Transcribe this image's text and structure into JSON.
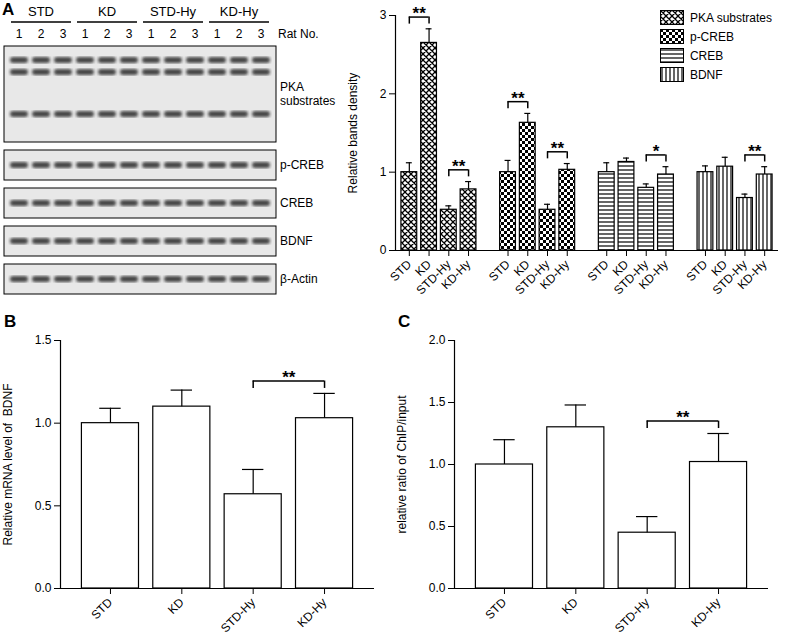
{
  "panel_labels": [
    "A",
    "B",
    "C"
  ],
  "blot": {
    "groups": [
      {
        "label": "STD",
        "lanes": [
          1,
          2,
          3
        ]
      },
      {
        "label": "KD",
        "lanes": [
          1,
          2,
          3
        ]
      },
      {
        "label": "STD-Hy",
        "lanes": [
          1,
          2,
          3
        ]
      },
      {
        "label": "KD-Hy",
        "lanes": [
          1,
          2,
          3
        ]
      }
    ],
    "lane_header": "Rat No.",
    "rows": [
      "PKA substrates",
      "p-CREB",
      "CREB",
      "BDNF",
      "β-Actin"
    ]
  },
  "chart_data": [
    {
      "type": "bar",
      "y_label": "Relative bands density",
      "categories": [
        "STD",
        "KD",
        "STD-Hy",
        "KD-Hy"
      ],
      "series": [
        {
          "name": "PKA substrates",
          "color": "#000000",
          "values": [
            1.0,
            2.65,
            0.52,
            0.78
          ],
          "errors": [
            0.12,
            0.18,
            0.05,
            0.1
          ]
        },
        {
          "name": "p-CREB",
          "color": "#000000",
          "values": [
            1.0,
            1.63,
            0.52,
            1.03
          ],
          "errors": [
            0.15,
            0.12,
            0.07,
            0.08
          ]
        },
        {
          "name": "CREB",
          "color": "#000000",
          "values": [
            1.0,
            1.13,
            0.8,
            0.97
          ],
          "errors": [
            0.12,
            0.05,
            0.05,
            0.1
          ]
        },
        {
          "name": "BDNF",
          "color": "#000000",
          "values": [
            1.0,
            1.07,
            0.67,
            0.97
          ],
          "errors": [
            0.08,
            0.12,
            0.05,
            0.1
          ]
        }
      ],
      "ylim": [
        0,
        3
      ],
      "yticks": [
        0,
        1,
        2,
        3
      ],
      "legend": "top-right",
      "annotations": [
        {
          "series": "PKA substrates",
          "from": "STD",
          "to": "KD",
          "label": "**"
        },
        {
          "series": "PKA substrates",
          "from": "STD-Hy",
          "to": "KD-Hy",
          "label": "**"
        },
        {
          "series": "p-CREB",
          "from": "STD",
          "to": "KD",
          "label": "**"
        },
        {
          "series": "p-CREB",
          "from": "STD-Hy",
          "to": "KD-Hy",
          "label": "**"
        },
        {
          "series": "CREB",
          "from": "STD-Hy",
          "to": "KD-Hy",
          "label": "*"
        },
        {
          "series": "BDNF",
          "from": "STD-Hy",
          "to": "KD-Hy",
          "label": "**"
        }
      ]
    },
    {
      "type": "bar",
      "y_label": "Relative mRNA level of  BDNF",
      "categories": [
        "STD",
        "KD",
        "STD-Hy",
        "KD-Hy"
      ],
      "values": [
        1.0,
        1.1,
        0.57,
        1.03
      ],
      "errors": [
        0.09,
        0.1,
        0.15,
        0.15
      ],
      "color": "#ffffff",
      "ylim": [
        0,
        1.5
      ],
      "yticks": [
        {
          "value": 0,
          "label": "0.0"
        },
        {
          "value": 0.5,
          "label": "0.5"
        },
        {
          "value": 1,
          "label": "1.0"
        },
        {
          "value": 1.5,
          "label": "1.5"
        }
      ],
      "annotations": [
        {
          "from": "STD-Hy",
          "to": "KD-Hy",
          "label": "**"
        }
      ]
    },
    {
      "type": "bar",
      "y_label": "relative ratio of ChIP/input",
      "categories": [
        "STD",
        "KD",
        "STD-Hy",
        "KD-Hy"
      ],
      "values": [
        1.0,
        1.3,
        0.45,
        1.02
      ],
      "errors": [
        0.2,
        0.18,
        0.13,
        0.23
      ],
      "color": "#ffffff",
      "ylim": [
        0,
        2
      ],
      "yticks": [
        {
          "value": 0,
          "label": "0.0"
        },
        {
          "value": 0.5,
          "label": "0.5"
        },
        {
          "value": 1,
          "label": "1.0"
        },
        {
          "value": 1.5,
          "label": "1.5"
        },
        {
          "value": 2,
          "label": "2.0"
        }
      ],
      "annotations": [
        {
          "from": "STD-Hy",
          "to": "KD-Hy",
          "label": "**"
        }
      ]
    }
  ]
}
